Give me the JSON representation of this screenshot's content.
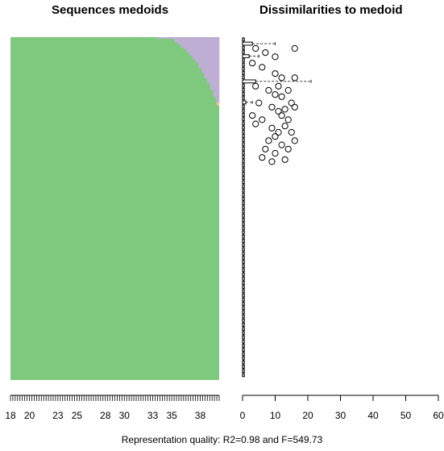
{
  "chart_data": [
    {
      "type": "area",
      "title": "Sequences medoids",
      "x": [
        18,
        19,
        20,
        21,
        22,
        23,
        24,
        25,
        26,
        27,
        28,
        29,
        30,
        31,
        32,
        33,
        34,
        35,
        36,
        37,
        38,
        39
      ],
      "xticklabels": [
        "18",
        "20",
        "23",
        "25",
        "28",
        "30",
        "33",
        "35",
        "38"
      ],
      "xlim": [
        18,
        40
      ],
      "n_columns": 70,
      "states": [
        {
          "name": "state-green",
          "color": "#7fc97f"
        },
        {
          "name": "state-purple",
          "color": "#beaed4"
        },
        {
          "name": "state-orange",
          "color": "#fdc086"
        }
      ],
      "purple_start_frac": [
        1,
        1,
        1,
        1,
        1,
        1,
        1,
        1,
        1,
        1,
        1,
        1,
        1,
        1,
        1,
        1,
        1,
        1,
        1,
        1,
        1,
        1,
        1,
        1,
        1,
        1,
        1,
        1,
        1,
        1,
        1,
        1,
        1,
        1,
        1,
        1,
        1,
        1,
        1,
        1,
        1,
        1,
        1,
        1,
        1,
        1,
        1,
        1,
        1,
        0.0,
        0.0,
        0.0,
        0.0,
        0.0,
        0.0,
        0.01,
        0.015,
        0.025,
        0.03,
        0.04,
        0.05,
        0.06,
        0.07,
        0.085,
        0.1,
        0.115,
        0.13,
        0.15,
        0.17,
        0.19
      ]
    },
    {
      "type": "scatter",
      "title": "Dissimilarities to medoid",
      "xticklabels": [
        "0",
        "10",
        "20",
        "30",
        "40",
        "50",
        "60"
      ],
      "xlim": [
        0,
        60
      ],
      "outliers": [
        [
          4,
          2.5
        ],
        [
          7,
          3.5
        ],
        [
          10,
          4.5
        ],
        [
          16,
          2.5
        ],
        [
          3,
          6
        ],
        [
          6,
          7
        ],
        [
          10,
          8.5
        ],
        [
          12,
          9.5
        ],
        [
          16,
          9.5
        ],
        [
          4,
          11.5
        ],
        [
          8,
          12.5
        ],
        [
          11,
          11.5
        ],
        [
          14,
          12.5
        ],
        [
          10,
          13.5
        ],
        [
          12,
          14
        ],
        [
          5,
          15.5
        ],
        [
          9,
          16.5
        ],
        [
          11,
          17.5
        ],
        [
          13,
          17
        ],
        [
          15,
          15.5
        ],
        [
          16,
          16.5
        ],
        [
          3,
          18.5
        ],
        [
          6,
          19.5
        ],
        [
          12,
          18.5
        ],
        [
          14,
          19.5
        ],
        [
          4,
          20.5
        ],
        [
          9,
          21.5
        ],
        [
          13,
          21
        ],
        [
          11,
          22.5
        ],
        [
          15,
          22.5
        ],
        [
          8,
          24.5
        ],
        [
          10,
          23.5
        ],
        [
          16,
          24.5
        ],
        [
          7,
          26.5
        ],
        [
          12,
          25.5
        ],
        [
          14,
          26.5
        ],
        [
          10,
          27.5
        ],
        [
          6,
          28.5
        ],
        [
          9,
          29.5
        ],
        [
          13,
          29
        ]
      ],
      "whiskers": [
        [
          3,
          10
        ],
        [
          2,
          5
        ],
        [
          4,
          21
        ],
        [
          1,
          3
        ]
      ]
    }
  ],
  "footer": "Representation quality: R2=0.98 and F=549.73"
}
